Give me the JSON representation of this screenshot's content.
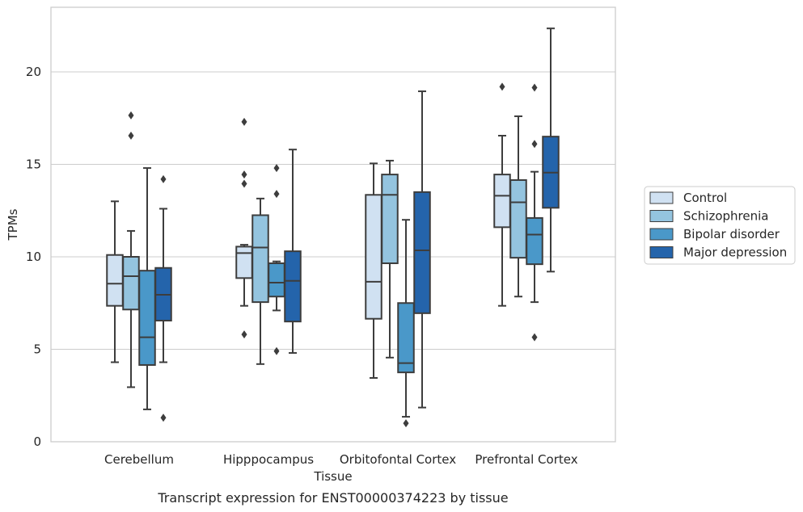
{
  "caption": "Transcript expression for ENST00000374223 by tissue",
  "chart_data": {
    "type": "box",
    "xlabel": "Tissue",
    "ylabel": "TPMs",
    "ylim": [
      0,
      23.5
    ],
    "yticks": [
      0,
      5,
      10,
      15,
      20
    ],
    "grid": "horizontal",
    "legend_position": "right",
    "categories": [
      "Cerebellum",
      "Hipppocampus",
      "Orbitofontal Cortex",
      "Prefrontal Cortex"
    ],
    "series": [
      {
        "name": "Control",
        "color": "#d0e1f2",
        "boxes": [
          {
            "whislo": 4.3,
            "q1": 7.35,
            "med": 8.55,
            "q3": 10.1,
            "whishi": 13.0,
            "fliers": []
          },
          {
            "whislo": 7.35,
            "q1": 8.85,
            "med": 10.2,
            "q3": 10.55,
            "whishi": 10.65,
            "fliers": [
              17.3,
              14.45,
              13.95,
              5.8
            ]
          },
          {
            "whislo": 3.45,
            "q1": 6.65,
            "med": 8.65,
            "q3": 13.35,
            "whishi": 15.05,
            "fliers": []
          },
          {
            "whislo": 7.35,
            "q1": 11.6,
            "med": 13.3,
            "q3": 14.45,
            "whishi": 16.55,
            "fliers": [
              19.2
            ]
          }
        ]
      },
      {
        "name": "Schizophrenia",
        "color": "#94c4df",
        "boxes": [
          {
            "whislo": 2.95,
            "q1": 7.15,
            "med": 8.95,
            "q3": 10.0,
            "whishi": 11.4,
            "fliers": [
              17.65,
              16.55
            ]
          },
          {
            "whislo": 4.2,
            "q1": 7.55,
            "med": 10.5,
            "q3": 12.25,
            "whishi": 13.15,
            "fliers": []
          },
          {
            "whislo": 4.55,
            "q1": 9.65,
            "med": 13.35,
            "q3": 14.45,
            "whishi": 15.2,
            "fliers": []
          },
          {
            "whislo": 7.85,
            "q1": 9.95,
            "med": 12.95,
            "q3": 14.15,
            "whishi": 17.6,
            "fliers": []
          }
        ]
      },
      {
        "name": "Bipolar disorder",
        "color": "#4a98c9",
        "boxes": [
          {
            "whislo": 1.75,
            "q1": 4.15,
            "med": 5.65,
            "q3": 9.25,
            "whishi": 14.8,
            "fliers": []
          },
          {
            "whislo": 7.1,
            "q1": 7.85,
            "med": 8.6,
            "q3": 9.65,
            "whishi": 9.75,
            "fliers": [
              14.8,
              13.4,
              4.9
            ]
          },
          {
            "whislo": 1.35,
            "q1": 3.75,
            "med": 4.25,
            "q3": 7.5,
            "whishi": 12.0,
            "fliers": [
              1.0
            ]
          },
          {
            "whislo": 7.55,
            "q1": 9.6,
            "med": 11.2,
            "q3": 12.1,
            "whishi": 14.6,
            "fliers": [
              19.15,
              16.1,
              5.65
            ]
          }
        ]
      },
      {
        "name": "Major depression",
        "color": "#2464ab",
        "boxes": [
          {
            "whislo": 4.3,
            "q1": 6.55,
            "med": 7.95,
            "q3": 9.4,
            "whishi": 12.6,
            "fliers": [
              14.2,
              1.3
            ]
          },
          {
            "whislo": 4.8,
            "q1": 6.5,
            "med": 8.7,
            "q3": 10.3,
            "whishi": 15.8,
            "fliers": []
          },
          {
            "whislo": 1.85,
            "q1": 6.95,
            "med": 10.35,
            "q3": 13.5,
            "whishi": 18.95,
            "fliers": []
          },
          {
            "whislo": 9.2,
            "q1": 12.65,
            "med": 14.55,
            "q3": 16.5,
            "whishi": 22.35,
            "fliers": []
          }
        ]
      }
    ]
  }
}
